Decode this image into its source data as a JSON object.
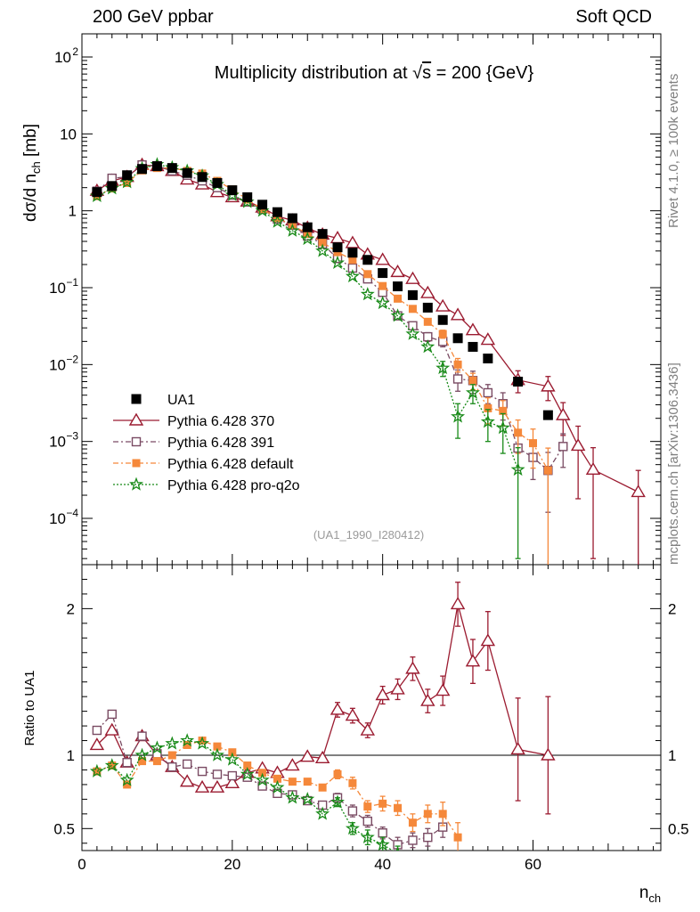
{
  "header": {
    "left": "200 GeV ppbar",
    "right": "Soft QCD",
    "side_top": "Rivet 4.1.0, ≥ 100k events",
    "side_bottom": "mcplots.cern.ch [arXiv:1306.3436]"
  },
  "colors": {
    "data": "#000000",
    "p370": "#9b1b30",
    "p391": "#7a4b63",
    "pdef": "#f5883a",
    "pq2o": "#188a18"
  },
  "chart_data": [
    {
      "type": "scatter",
      "panel": "main",
      "title": "Multiplicity distribution at √s = 200 {GeV}",
      "title_parts": {
        "pre": "Multiplicity distribution at ",
        "sqrt": "√",
        "s": "s",
        "post": " = 200 {GeV}"
      },
      "ylabel": "dσ/d n_ch [mb]",
      "ylabel_parts": {
        "main": "dσ/d n",
        "sub": "ch",
        "unit": " [mb]"
      },
      "yscale": "log",
      "ylim": [
        2.5e-05,
        200
      ],
      "xlim": [
        0,
        77
      ],
      "yticks": [
        "10^-4",
        "10^-3",
        "10^-2",
        "10^-1",
        "1",
        "10",
        "10^2"
      ],
      "ytick_labels": [
        {
          "v": 0.0001,
          "base": "10",
          "exp": "−4"
        },
        {
          "v": 0.001,
          "base": "10",
          "exp": "−3"
        },
        {
          "v": 0.01,
          "base": "10",
          "exp": "−2"
        },
        {
          "v": 0.1,
          "base": "10",
          "exp": "−1"
        },
        {
          "v": 1,
          "base": "1",
          "exp": ""
        },
        {
          "v": 10,
          "base": "10",
          "exp": ""
        },
        {
          "v": 100,
          "base": "10",
          "exp": "2"
        }
      ],
      "annotation": "(UA1_1990_I280412)",
      "legend_placement": "lower-left",
      "legend": [
        "UA1",
        "Pythia 6.428 370",
        "Pythia 6.428 391",
        "Pythia 6.428 default",
        "Pythia 6.428 pro-q2o"
      ],
      "series": [
        {
          "name": "UA1",
          "key": "data",
          "marker": "square-filled",
          "line": "none",
          "x": [
            2,
            4,
            6,
            8,
            10,
            12,
            14,
            16,
            18,
            20,
            22,
            24,
            26,
            28,
            30,
            32,
            34,
            36,
            38,
            40,
            42,
            44,
            46,
            48,
            50,
            52,
            54,
            58,
            62
          ],
          "y": [
            1.75,
            2.1,
            2.9,
            3.5,
            3.8,
            3.6,
            3.1,
            2.75,
            2.3,
            1.85,
            1.5,
            1.2,
            0.96,
            0.8,
            0.61,
            0.5,
            0.335,
            0.285,
            0.23,
            0.155,
            0.104,
            0.08,
            0.055,
            0.038,
            0.022,
            0.017,
            0.012,
            0.006,
            0.0022
          ]
        },
        {
          "name": "Pythia 6.428 370",
          "key": "p370",
          "marker": "triangle-open",
          "line": "solid",
          "x": [
            2,
            4,
            6,
            8,
            10,
            12,
            14,
            16,
            18,
            20,
            22,
            24,
            26,
            28,
            30,
            32,
            34,
            36,
            38,
            40,
            42,
            44,
            46,
            48,
            50,
            52,
            54,
            58,
            62,
            64,
            66,
            68,
            74
          ],
          "y": [
            1.82,
            2.45,
            2.75,
            3.95,
            3.8,
            3.3,
            2.55,
            2.2,
            1.75,
            1.5,
            1.32,
            1.1,
            0.85,
            0.75,
            0.6,
            0.49,
            0.44,
            0.38,
            0.27,
            0.23,
            0.16,
            0.13,
            0.085,
            0.057,
            0.044,
            0.028,
            0.021,
            0.0063,
            0.0052,
            0.0022,
            0.00088,
            0.00043,
            0.00022
          ],
          "yerr": [
            0,
            0,
            0,
            0,
            0,
            0,
            0,
            0,
            0,
            0,
            0,
            0,
            0,
            0,
            0,
            0,
            0,
            0,
            0,
            0,
            0,
            0,
            0,
            0,
            0,
            0,
            0,
            0.002,
            0.0018,
            0.001,
            0.0007,
            0.0004,
            0.0002
          ]
        },
        {
          "name": "Pythia 6.428 391",
          "key": "p391",
          "marker": "square-open",
          "line": "dashdot",
          "x": [
            2,
            4,
            6,
            8,
            10,
            12,
            14,
            16,
            18,
            20,
            22,
            24,
            26,
            28,
            30,
            32,
            34,
            36,
            38,
            40,
            42,
            44,
            46,
            48,
            50,
            52,
            54,
            56,
            58,
            60,
            62,
            64
          ],
          "y": [
            1.8,
            2.65,
            2.75,
            3.95,
            3.85,
            3.3,
            2.9,
            2.45,
            2.0,
            1.6,
            1.3,
            1.05,
            0.78,
            0.65,
            0.47,
            0.37,
            0.24,
            0.18,
            0.13,
            0.087,
            0.043,
            0.032,
            0.023,
            0.02,
            0.0065,
            0.0062,
            0.0043,
            0.0031,
            0.00082,
            0.00062,
            0.00042,
            0.00086
          ],
          "yerr": [
            0,
            0,
            0,
            0,
            0,
            0,
            0,
            0,
            0,
            0,
            0,
            0,
            0,
            0,
            0,
            0,
            0,
            0,
            0,
            0,
            0,
            0.003,
            0.003,
            0.003,
            0.002,
            0.002,
            0.0012,
            0.0012,
            0.0004,
            0.0003,
            0.0003,
            0.0004
          ]
        },
        {
          "name": "Pythia 6.428 default",
          "key": "pdef",
          "marker": "square-filled",
          "line": "dashdot",
          "x": [
            2,
            4,
            6,
            8,
            10,
            12,
            14,
            16,
            18,
            20,
            22,
            24,
            26,
            28,
            30,
            32,
            34,
            36,
            38,
            40,
            42,
            44,
            46,
            48,
            50,
            52,
            54,
            56,
            58,
            60,
            62
          ],
          "y": [
            1.55,
            1.95,
            2.3,
            3.35,
            3.6,
            3.6,
            3.3,
            3.05,
            2.45,
            1.9,
            1.4,
            1.05,
            0.8,
            0.65,
            0.5,
            0.39,
            0.29,
            0.23,
            0.15,
            0.105,
            0.072,
            0.053,
            0.036,
            0.025,
            0.01,
            0.0062,
            0.0027,
            0.0025,
            0.0013,
            0.00095,
            0.00042
          ],
          "yerr": [
            0,
            0,
            0,
            0,
            0,
            0,
            0,
            0,
            0,
            0,
            0,
            0,
            0,
            0,
            0,
            0,
            0,
            0,
            0,
            0,
            0,
            0,
            0,
            0.003,
            0.002,
            0.0015,
            0.001,
            0.0009,
            0.0006,
            0.0005,
            0.0004
          ]
        },
        {
          "name": "Pythia 6.428 pro-q2o",
          "key": "pq2o",
          "marker": "star-open",
          "line": "dotted",
          "x": [
            2,
            4,
            6,
            8,
            10,
            12,
            14,
            16,
            18,
            20,
            22,
            24,
            26,
            28,
            30,
            32,
            34,
            36,
            38,
            40,
            42,
            44,
            46,
            48,
            50,
            52,
            54,
            56,
            58
          ],
          "y": [
            1.55,
            1.95,
            2.35,
            3.55,
            4.0,
            3.65,
            3.3,
            2.85,
            2.2,
            1.6,
            1.3,
            1.0,
            0.72,
            0.55,
            0.43,
            0.3,
            0.21,
            0.14,
            0.082,
            0.063,
            0.043,
            0.025,
            0.017,
            0.009,
            0.0021,
            0.0043,
            0.0018,
            0.0015,
            0.00043
          ],
          "yerr": [
            0,
            0,
            0,
            0,
            0,
            0,
            0,
            0,
            0,
            0,
            0,
            0,
            0,
            0,
            0,
            0,
            0,
            0,
            0,
            0,
            0,
            0,
            0,
            0.002,
            0.001,
            0.0012,
            0.0008,
            0.0008,
            0.0004
          ]
        }
      ]
    },
    {
      "type": "line",
      "panel": "ratio",
      "ylabel": "Ratio to UA1",
      "xlabel": "n_ch",
      "xlabel_parts": {
        "main": "n",
        "sub": "ch"
      },
      "xlim": [
        0,
        77
      ],
      "xticks": [
        0,
        20,
        40,
        60
      ],
      "ylim": [
        0.35,
        2.3
      ],
      "yticks": [
        0.5,
        1,
        2
      ],
      "ytick_labels": [
        "0.5",
        "1",
        "2"
      ],
      "reference_line": 1,
      "series": [
        {
          "name": "Pythia 6.428 370",
          "key": "p370",
          "marker": "triangle-open",
          "line": "solid",
          "x": [
            2,
            4,
            6,
            8,
            10,
            12,
            14,
            16,
            18,
            20,
            22,
            24,
            26,
            28,
            30,
            32,
            34,
            36,
            38,
            40,
            42,
            44,
            46,
            48,
            50,
            52,
            54,
            58,
            62
          ],
          "y": [
            1.07,
            1.17,
            0.95,
            1.13,
            1.0,
            0.92,
            0.82,
            0.78,
            0.78,
            0.81,
            0.88,
            0.91,
            0.88,
            0.93,
            0.99,
            0.98,
            1.31,
            1.27,
            1.17,
            1.41,
            1.45,
            1.59,
            1.37,
            1.44,
            2.03,
            1.64,
            1.78,
            1.04,
            1.0
          ],
          "yerr": [
            0,
            0,
            0,
            0,
            0,
            0,
            0,
            0,
            0,
            0,
            0,
            0,
            0,
            0,
            0,
            0,
            0.05,
            0.05,
            0.05,
            0.06,
            0.07,
            0.08,
            0.08,
            0.1,
            0.15,
            0.15,
            0.2,
            0.35,
            0.4
          ]
        },
        {
          "name": "Pythia 6.428 391",
          "key": "p391",
          "marker": "square-open",
          "line": "dashdot",
          "x": [
            2,
            4,
            6,
            8,
            10,
            12,
            14,
            16,
            18,
            20,
            22,
            24,
            26,
            28,
            30,
            32,
            34,
            36,
            38,
            40,
            42,
            44,
            46,
            48
          ],
          "y": [
            1.17,
            1.28,
            0.95,
            1.13,
            1.01,
            0.92,
            0.94,
            0.89,
            0.87,
            0.86,
            0.85,
            0.79,
            0.74,
            0.73,
            0.69,
            0.66,
            0.71,
            0.62,
            0.55,
            0.47,
            0.39,
            0.42,
            0.44,
            0.51
          ],
          "yerr": [
            0,
            0,
            0,
            0,
            0,
            0,
            0,
            0,
            0,
            0,
            0,
            0,
            0,
            0,
            0,
            0,
            0.03,
            0.04,
            0.04,
            0.04,
            0.05,
            0.05,
            0.06,
            0.07
          ]
        },
        {
          "name": "Pythia 6.428 default",
          "key": "pdef",
          "marker": "square-filled",
          "line": "dashdot",
          "x": [
            2,
            4,
            6,
            8,
            10,
            12,
            14,
            16,
            18,
            20,
            22,
            24,
            26,
            28,
            30,
            32,
            34,
            36,
            38,
            40,
            42,
            44,
            46,
            48,
            50
          ],
          "y": [
            0.89,
            0.93,
            0.8,
            0.96,
            0.96,
            1.0,
            1.07,
            1.1,
            1.06,
            1.02,
            0.93,
            0.88,
            0.84,
            0.82,
            0.82,
            0.78,
            0.87,
            0.81,
            0.65,
            0.67,
            0.64,
            0.54,
            0.6,
            0.6,
            0.44
          ],
          "yerr": [
            0,
            0,
            0,
            0,
            0,
            0,
            0,
            0,
            0,
            0,
            0,
            0,
            0,
            0,
            0,
            0,
            0.03,
            0.04,
            0.04,
            0.05,
            0.05,
            0.06,
            0.06,
            0.08,
            0.1
          ]
        },
        {
          "name": "Pythia 6.428 pro-q2o",
          "key": "pq2o",
          "marker": "star-open",
          "line": "dotted",
          "x": [
            2,
            4,
            6,
            8,
            10,
            12,
            14,
            16,
            18,
            20,
            22,
            24,
            26,
            28,
            30,
            32,
            34,
            36,
            38,
            40,
            42
          ],
          "y": [
            0.89,
            0.93,
            0.83,
            1.0,
            1.05,
            1.08,
            1.1,
            1.08,
            1.0,
            0.97,
            0.87,
            0.83,
            0.78,
            0.71,
            0.7,
            0.6,
            0.68,
            0.5,
            0.44,
            0.39,
            0.33
          ],
          "yerr": [
            0,
            0,
            0,
            0,
            0,
            0,
            0,
            0,
            0,
            0,
            0,
            0,
            0,
            0,
            0,
            0,
            0.03,
            0.04,
            0.05,
            0.05,
            0.05
          ]
        }
      ]
    }
  ]
}
